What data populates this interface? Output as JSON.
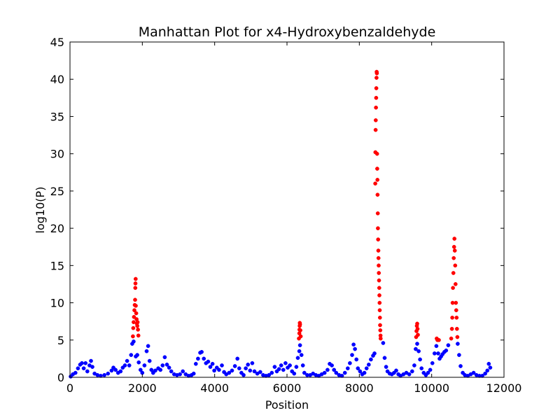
{
  "chart_data": {
    "type": "scatter",
    "title": "Manhattan Plot for x4-Hydroxybenzaldehyde",
    "xlabel": "Position",
    "ylabel": "log10(P)",
    "xlim": [
      0,
      12000
    ],
    "ylim": [
      0,
      45
    ],
    "xticks": [
      0,
      2000,
      4000,
      6000,
      8000,
      10000,
      12000
    ],
    "yticks": [
      0,
      5,
      10,
      15,
      20,
      25,
      30,
      35,
      40,
      45
    ],
    "grid": false,
    "legend": "none",
    "colors": {
      "below_threshold": "#0000ff",
      "above_threshold": "#ff0000"
    },
    "threshold": 5,
    "series": [
      {
        "color": "#0000ff",
        "points": [
          [
            20,
            0.1
          ],
          [
            80,
            0.4
          ],
          [
            150,
            0.6
          ],
          [
            220,
            1.2
          ],
          [
            280,
            1.7
          ],
          [
            330,
            1.9
          ],
          [
            380,
            1.2
          ],
          [
            430,
            1.9
          ],
          [
            480,
            0.8
          ],
          [
            540,
            1.6
          ],
          [
            580,
            2.2
          ],
          [
            620,
            1.4
          ],
          [
            680,
            0.5
          ],
          [
            760,
            0.3
          ],
          [
            850,
            0.2
          ],
          [
            950,
            0.3
          ],
          [
            1050,
            0.5
          ],
          [
            1150,
            0.9
          ],
          [
            1200,
            1.3
          ],
          [
            1260,
            1.0
          ],
          [
            1330,
            0.6
          ],
          [
            1400,
            0.8
          ],
          [
            1460,
            1.3
          ],
          [
            1520,
            1.6
          ],
          [
            1580,
            2.2
          ],
          [
            1640,
            1.6
          ],
          [
            1690,
            3.0
          ],
          [
            1720,
            4.5
          ],
          [
            1760,
            4.8
          ],
          [
            1820,
            2.8
          ],
          [
            1860,
            3.0
          ],
          [
            1900,
            2.0
          ],
          [
            1950,
            1.0
          ],
          [
            2000,
            0.6
          ],
          [
            2060,
            1.6
          ],
          [
            2120,
            3.5
          ],
          [
            2160,
            4.2
          ],
          [
            2200,
            2.2
          ],
          [
            2250,
            1.0
          ],
          [
            2300,
            0.6
          ],
          [
            2360,
            0.9
          ],
          [
            2440,
            1.2
          ],
          [
            2500,
            1.0
          ],
          [
            2560,
            1.6
          ],
          [
            2620,
            2.7
          ],
          [
            2680,
            1.7
          ],
          [
            2740,
            1.3
          ],
          [
            2800,
            0.8
          ],
          [
            2880,
            0.4
          ],
          [
            2960,
            0.3
          ],
          [
            3040,
            0.4
          ],
          [
            3120,
            0.8
          ],
          [
            3200,
            0.4
          ],
          [
            3280,
            0.2
          ],
          [
            3360,
            0.3
          ],
          [
            3420,
            0.5
          ],
          [
            3480,
            1.8
          ],
          [
            3540,
            2.5
          ],
          [
            3600,
            3.3
          ],
          [
            3640,
            3.4
          ],
          [
            3700,
            2.5
          ],
          [
            3760,
            1.9
          ],
          [
            3820,
            2.1
          ],
          [
            3880,
            1.4
          ],
          [
            3940,
            1.8
          ],
          [
            3990,
            0.9
          ],
          [
            4060,
            1.3
          ],
          [
            4120,
            1.0
          ],
          [
            4200,
            1.6
          ],
          [
            4260,
            0.7
          ],
          [
            4320,
            0.4
          ],
          [
            4400,
            0.6
          ],
          [
            4480,
            0.9
          ],
          [
            4560,
            1.5
          ],
          [
            4630,
            2.5
          ],
          [
            4680,
            1.2
          ],
          [
            4740,
            0.6
          ],
          [
            4800,
            0.3
          ],
          [
            4860,
            1.2
          ],
          [
            4920,
            1.7
          ],
          [
            4980,
            0.9
          ],
          [
            5040,
            1.9
          ],
          [
            5100,
            0.8
          ],
          [
            5180,
            0.5
          ],
          [
            5260,
            0.7
          ],
          [
            5340,
            0.3
          ],
          [
            5420,
            0.2
          ],
          [
            5500,
            0.3
          ],
          [
            5580,
            0.6
          ],
          [
            5660,
            1.4
          ],
          [
            5720,
            0.8
          ],
          [
            5780,
            1.1
          ],
          [
            5840,
            1.6
          ],
          [
            5900,
            1.0
          ],
          [
            5960,
            1.9
          ],
          [
            6020,
            1.3
          ],
          [
            6080,
            1.6
          ],
          [
            6140,
            0.8
          ],
          [
            6200,
            0.5
          ],
          [
            6260,
            1.4
          ],
          [
            6300,
            2.6
          ],
          [
            6340,
            3.5
          ],
          [
            6360,
            4.3
          ],
          [
            6400,
            3.0
          ],
          [
            6440,
            1.6
          ],
          [
            6480,
            0.6
          ],
          [
            6560,
            0.3
          ],
          [
            6640,
            0.3
          ],
          [
            6720,
            0.5
          ],
          [
            6800,
            0.3
          ],
          [
            6880,
            0.2
          ],
          [
            6960,
            0.4
          ],
          [
            7040,
            0.6
          ],
          [
            7120,
            1.0
          ],
          [
            7180,
            1.8
          ],
          [
            7240,
            1.6
          ],
          [
            7300,
            1.0
          ],
          [
            7360,
            0.6
          ],
          [
            7440,
            0.3
          ],
          [
            7520,
            0.2
          ],
          [
            7600,
            0.6
          ],
          [
            7680,
            1.2
          ],
          [
            7740,
            1.9
          ],
          [
            7800,
            3.0
          ],
          [
            7840,
            4.4
          ],
          [
            7880,
            3.8
          ],
          [
            7920,
            2.4
          ],
          [
            7960,
            1.2
          ],
          [
            8020,
            0.8
          ],
          [
            8080,
            0.4
          ],
          [
            8140,
            0.6
          ],
          [
            8200,
            1.2
          ],
          [
            8260,
            1.7
          ],
          [
            8320,
            2.4
          ],
          [
            8380,
            2.9
          ],
          [
            8420,
            3.2
          ],
          [
            8660,
            4.6
          ],
          [
            8700,
            2.6
          ],
          [
            8740,
            1.4
          ],
          [
            8780,
            0.8
          ],
          [
            8840,
            0.5
          ],
          [
            8900,
            0.4
          ],
          [
            8960,
            0.6
          ],
          [
            9020,
            0.9
          ],
          [
            9080,
            0.4
          ],
          [
            9140,
            0.2
          ],
          [
            9220,
            0.4
          ],
          [
            9300,
            0.6
          ],
          [
            9380,
            0.4
          ],
          [
            9460,
            0.8
          ],
          [
            9520,
            1.6
          ],
          [
            9560,
            3.8
          ],
          [
            9600,
            4.5
          ],
          [
            9640,
            3.5
          ],
          [
            9680,
            2.4
          ],
          [
            9720,
            1.2
          ],
          [
            9780,
            0.6
          ],
          [
            9840,
            0.3
          ],
          [
            9900,
            0.6
          ],
          [
            9960,
            1.0
          ],
          [
            10020,
            1.9
          ],
          [
            10080,
            3.2
          ],
          [
            10130,
            4.2
          ],
          [
            10180,
            3.2
          ],
          [
            10220,
            2.5
          ],
          [
            10260,
            2.8
          ],
          [
            10300,
            3.1
          ],
          [
            10350,
            3.4
          ],
          [
            10400,
            3.6
          ],
          [
            10460,
            4.3
          ],
          [
            10720,
            4.5
          ],
          [
            10760,
            3.0
          ],
          [
            10800,
            1.5
          ],
          [
            10860,
            0.6
          ],
          [
            10920,
            0.3
          ],
          [
            11000,
            0.2
          ],
          [
            11080,
            0.4
          ],
          [
            11160,
            0.6
          ],
          [
            11240,
            0.3
          ],
          [
            11320,
            0.2
          ],
          [
            11400,
            0.2
          ],
          [
            11480,
            0.5
          ],
          [
            11540,
            0.9
          ],
          [
            11580,
            1.8
          ],
          [
            11620,
            1.3
          ]
        ]
      },
      {
        "color": "#ff0000",
        "points": [
          [
            1740,
            5.5
          ],
          [
            1750,
            6.6
          ],
          [
            1760,
            7.4
          ],
          [
            1770,
            8.1
          ],
          [
            1780,
            9.0
          ],
          [
            1790,
            9.7
          ],
          [
            1800,
            10.4
          ],
          [
            1805,
            12.0
          ],
          [
            1810,
            12.6
          ],
          [
            1815,
            13.2
          ],
          [
            1820,
            9.6
          ],
          [
            1830,
            8.6
          ],
          [
            1840,
            7.8
          ],
          [
            1850,
            7.2
          ],
          [
            1860,
            6.9
          ],
          [
            1870,
            7.4
          ],
          [
            1880,
            6.4
          ],
          [
            1890,
            5.6
          ],
          [
            6330,
            5.2
          ],
          [
            6340,
            5.9
          ],
          [
            6345,
            6.4
          ],
          [
            6350,
            6.9
          ],
          [
            6355,
            7.3
          ],
          [
            6360,
            7.1
          ],
          [
            6370,
            6.3
          ],
          [
            6380,
            5.5
          ],
          [
            8440,
            26.0
          ],
          [
            8445,
            30.2
          ],
          [
            8450,
            33.2
          ],
          [
            8455,
            34.5
          ],
          [
            8460,
            36.2
          ],
          [
            8465,
            37.5
          ],
          [
            8470,
            38.8
          ],
          [
            8475,
            40.2
          ],
          [
            8480,
            41.0
          ],
          [
            8485,
            40.8
          ],
          [
            8490,
            30.0
          ],
          [
            8495,
            28.0
          ],
          [
            8500,
            26.5
          ],
          [
            8505,
            24.5
          ],
          [
            8510,
            22.0
          ],
          [
            8515,
            20.0
          ],
          [
            8520,
            18.5
          ],
          [
            8525,
            17.0
          ],
          [
            8530,
            16.0
          ],
          [
            8535,
            15.0
          ],
          [
            8540,
            14.0
          ],
          [
            8545,
            13.0
          ],
          [
            8550,
            12.0
          ],
          [
            8555,
            11.0
          ],
          [
            8560,
            10.0
          ],
          [
            8565,
            9.0
          ],
          [
            8570,
            8.0
          ],
          [
            8575,
            7.0
          ],
          [
            8580,
            6.3
          ],
          [
            8585,
            5.6
          ],
          [
            8590,
            5.2
          ],
          [
            9570,
            5.4
          ],
          [
            9580,
            6.2
          ],
          [
            9590,
            6.9
          ],
          [
            9600,
            7.2
          ],
          [
            9610,
            6.5
          ],
          [
            9620,
            5.7
          ],
          [
            10140,
            5.2
          ],
          [
            10160,
            5.0
          ],
          [
            10200,
            5.0
          ],
          [
            10540,
            5.2
          ],
          [
            10560,
            6.5
          ],
          [
            10570,
            8.0
          ],
          [
            10580,
            10.0
          ],
          [
            10590,
            12.0
          ],
          [
            10600,
            14.0
          ],
          [
            10610,
            16.0
          ],
          [
            10620,
            17.5
          ],
          [
            10630,
            18.6
          ],
          [
            10640,
            17.0
          ],
          [
            10650,
            15.0
          ],
          [
            10660,
            12.5
          ],
          [
            10670,
            10.0
          ],
          [
            10680,
            9.0
          ],
          [
            10690,
            8.0
          ],
          [
            10700,
            6.5
          ],
          [
            10710,
            5.4
          ]
        ]
      }
    ]
  }
}
